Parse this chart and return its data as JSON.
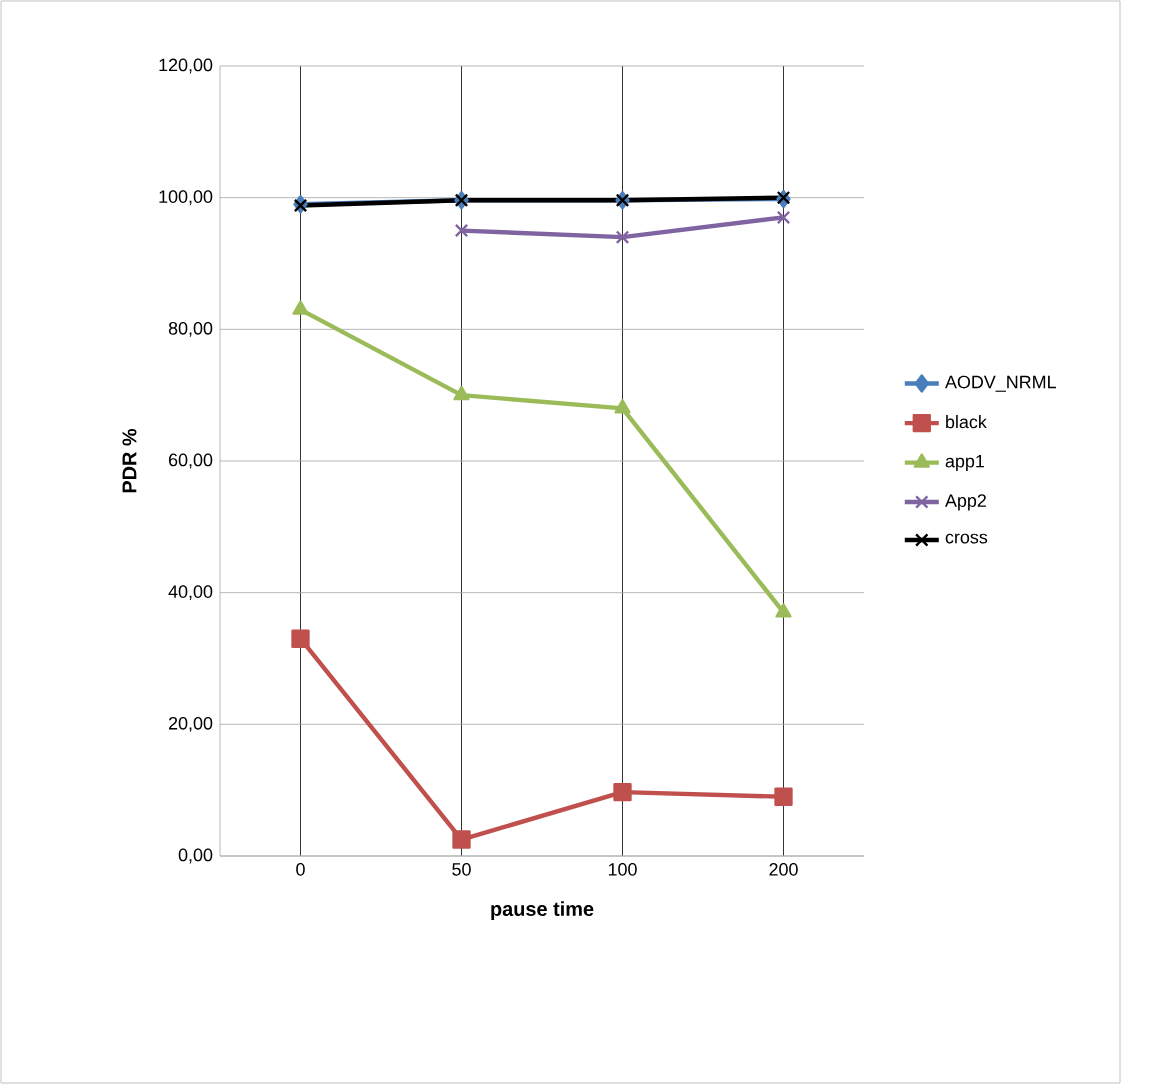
{
  "chart_data": {
    "type": "line",
    "xlabel": "pause time",
    "ylabel": "PDR %",
    "categories": [
      "0",
      "50",
      "100",
      "200"
    ],
    "ylim": [
      0,
      120
    ],
    "yticks": [
      {
        "value": 0,
        "label": "0,00"
      },
      {
        "value": 20,
        "label": "20,00"
      },
      {
        "value": 40,
        "label": "40,00"
      },
      {
        "value": 60,
        "label": "60,00"
      },
      {
        "value": 80,
        "label": "80,00"
      },
      {
        "value": 100,
        "label": "100,00"
      },
      {
        "value": 120,
        "label": "120,00"
      }
    ],
    "grid": true,
    "legend": "right",
    "series": [
      {
        "name": "AODV_NRML",
        "color": "#4a7ebb",
        "marker": "diamond",
        "values": [
          99,
          99.6,
          99.6,
          99.8
        ]
      },
      {
        "name": "black",
        "color": "#c0504d",
        "marker": "square",
        "values": [
          33,
          2.5,
          9.7,
          9
        ]
      },
      {
        "name": "app1",
        "color": "#9bbb59",
        "marker": "triangle",
        "values": [
          83,
          70,
          68,
          37
        ]
      },
      {
        "name": "App2",
        "color": "#8064a2",
        "marker": "cross",
        "values": [
          null,
          95,
          94,
          97
        ]
      },
      {
        "name": "cross",
        "color": "#000000",
        "marker": "cross",
        "values": [
          98.8,
          99.6,
          99.6,
          100
        ]
      }
    ]
  }
}
